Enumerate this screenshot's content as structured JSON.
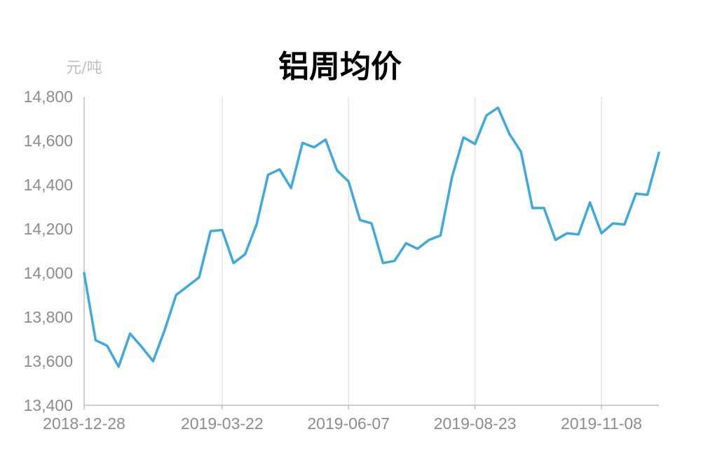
{
  "chart_data": {
    "type": "line",
    "title": "铝周均价",
    "ylabel": "元/吨",
    "xlabel": "",
    "ylim": [
      13400,
      14800
    ],
    "yticks": [
      13400,
      13600,
      13800,
      14000,
      14200,
      14400,
      14600,
      14800
    ],
    "ytick_labels": [
      "13,400",
      "13,600",
      "13,800",
      "14,000",
      "14,200",
      "14,400",
      "14,600",
      "14,800"
    ],
    "xtick_labels": [
      "2018-12-28",
      "2019-03-22",
      "2019-06-07",
      "2019-08-23",
      "2019-11-08"
    ],
    "xtick_index": [
      0,
      12,
      23,
      34,
      45
    ],
    "grid": {
      "vertical": true,
      "horizontal": false
    },
    "color": "#3fa9dc",
    "series": [
      {
        "values": [
          14000,
          13695,
          13670,
          13575,
          13725,
          13665,
          13600,
          13740,
          13900,
          13940,
          13980,
          14190,
          14195,
          14045,
          14085,
          14220,
          14445,
          14470,
          14385,
          14590,
          14570,
          14605,
          14465,
          14415,
          14240,
          14225,
          14045,
          14055,
          14135,
          14110,
          14150,
          14170,
          14435,
          14615,
          14585,
          14715,
          14750,
          14630,
          14550,
          14295,
          14295,
          14150,
          14180,
          14175,
          14320,
          14180,
          14225,
          14220,
          14360,
          14355,
          14545
        ]
      }
    ]
  }
}
